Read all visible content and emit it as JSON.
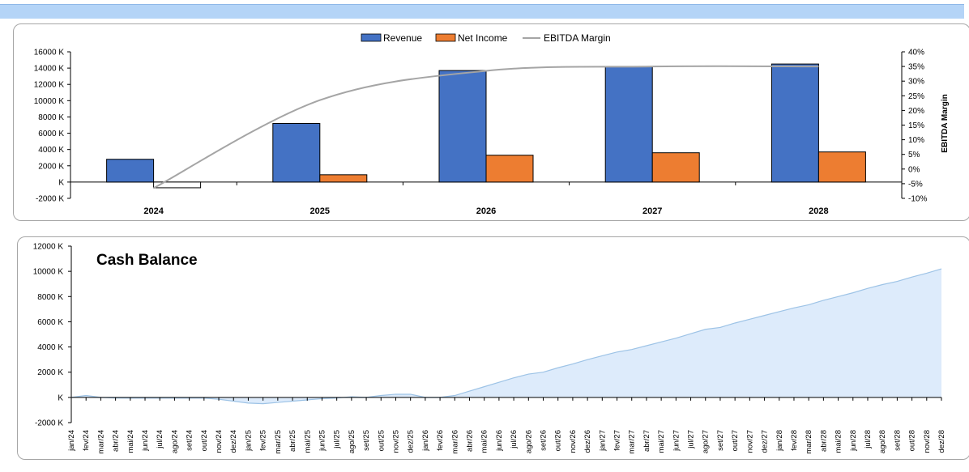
{
  "chart_data": [
    {
      "type": "bar",
      "categories": [
        "2024",
        "2025",
        "2026",
        "2027",
        "2028"
      ],
      "series": [
        {
          "name": "Revenue",
          "kind": "bar",
          "axis": "left",
          "color": "#4472c4",
          "values": [
            2800,
            7200,
            13700,
            14200,
            14500
          ]
        },
        {
          "name": "Net Income",
          "kind": "bar",
          "axis": "left",
          "color": "#ed7d31",
          "values": [
            -700,
            900,
            3300,
            3600,
            3700
          ]
        },
        {
          "name": "EBITDA Margin",
          "kind": "line",
          "axis": "right",
          "color": "#a5a5a5",
          "values": [
            -0.065,
            0.235,
            0.335,
            0.35,
            0.35
          ]
        }
      ],
      "ylim": [
        -2000,
        16000
      ],
      "yticks": [
        -2000,
        0,
        2000,
        4000,
        6000,
        8000,
        10000,
        12000,
        14000,
        16000
      ],
      "ytick_labels": [
        "-2000 K",
        "K",
        "2000 K",
        "4000 K",
        "6000 K",
        "8000 K",
        "10000 K",
        "12000 K",
        "14000 K",
        "16000 K"
      ],
      "y2lim": [
        -0.1,
        0.4
      ],
      "y2ticks": [
        -0.1,
        -0.05,
        0,
        0.05,
        0.1,
        0.15,
        0.2,
        0.25,
        0.3,
        0.35,
        0.4
      ],
      "y2tick_labels": [
        "-10%",
        "-5%",
        "0%",
        "5%",
        "10%",
        "15%",
        "20%",
        "25%",
        "30%",
        "35%",
        "40%"
      ],
      "y2label": "EBITDA Margin",
      "legend": "top-center",
      "grid": false
    },
    {
      "type": "area",
      "title": "Cash Balance",
      "color": "#ddebfb",
      "line_color": "#9dc3e6",
      "x": [
        "jan/24",
        "fev/24",
        "mar/24",
        "abr/24",
        "mai/24",
        "jun/24",
        "jul/24",
        "ago/24",
        "set/24",
        "out/24",
        "nov/24",
        "dez/24",
        "jan/25",
        "fev/25",
        "mar/25",
        "abr/25",
        "mai/25",
        "jun/25",
        "jul/25",
        "ago/25",
        "set/25",
        "out/25",
        "nov/25",
        "dez/25",
        "jan/26",
        "fev/26",
        "mar/26",
        "abr/26",
        "mai/26",
        "jun/26",
        "jul/26",
        "ago/26",
        "set/26",
        "out/26",
        "nov/26",
        "dez/26",
        "jan/27",
        "fev/27",
        "mar/27",
        "abr/27",
        "mai/27",
        "jun/27",
        "jul/27",
        "ago/27",
        "set/27",
        "out/27",
        "nov/27",
        "dez/27",
        "jan/28",
        "fev/28",
        "mar/28",
        "abr/28",
        "mai/28",
        "jun/28",
        "jul/28",
        "ago/28",
        "set/28",
        "out/28",
        "nov/28",
        "dez/28"
      ],
      "values": [
        0,
        150,
        0,
        -50,
        -60,
        -60,
        -60,
        -60,
        -60,
        -60,
        -150,
        -300,
        -450,
        -500,
        -400,
        -300,
        -200,
        -100,
        -50,
        50,
        0,
        150,
        250,
        250,
        0,
        0,
        150,
        500,
        850,
        1200,
        1550,
        1850,
        2000,
        2350,
        2650,
        3000,
        3300,
        3600,
        3800,
        4100,
        4400,
        4700,
        5050,
        5400,
        5550,
        5900,
        6200,
        6500,
        6800,
        7100,
        7350,
        7700,
        8000,
        8300,
        8650,
        8950,
        9200,
        9550,
        9850,
        10200
      ],
      "ylim": [
        -2000,
        12000
      ],
      "yticks": [
        -2000,
        0,
        2000,
        4000,
        6000,
        8000,
        10000,
        12000
      ],
      "ytick_labels": [
        "-2000 K",
        "K",
        "2000 K",
        "4000 K",
        "6000 K",
        "8000 K",
        "10000 K",
        "12000 K"
      ],
      "grid": false
    }
  ]
}
